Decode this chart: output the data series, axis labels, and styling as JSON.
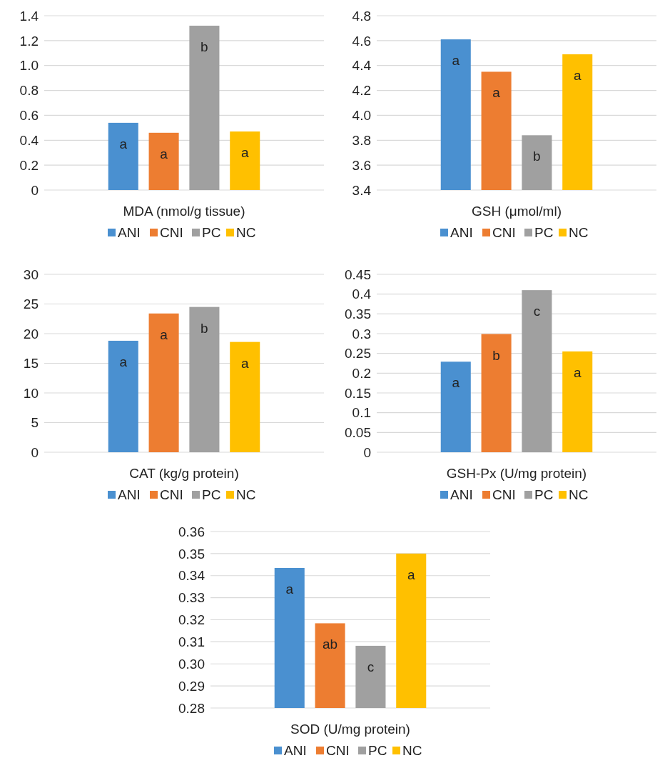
{
  "chart_data": [
    {
      "type": "bar",
      "xlabel": "MDA (nmol/g tissue)",
      "categories": [
        null
      ],
      "ylim": [
        0,
        1.4
      ],
      "yticks": [
        0,
        0.2,
        0.4,
        0.6,
        0.8,
        {
          "value": 1,
          "label": "1.0"
        },
        1.2,
        1.4
      ],
      "grid": "y",
      "legend": "bottom",
      "series": [
        {
          "name": "ANI",
          "color": "#4a90d0",
          "values": [
            0.54
          ],
          "value_labels": [
            "a"
          ]
        },
        {
          "name": "CNI",
          "color": "#ed7d31",
          "values": [
            0.46
          ],
          "value_labels": [
            "a"
          ]
        },
        {
          "name": "PC",
          "color": "#a0a0a0",
          "values": [
            1.32
          ],
          "value_labels": [
            "b"
          ]
        },
        {
          "name": "NC",
          "color": "#ffc000",
          "values": [
            0.47
          ],
          "value_labels": [
            "a"
          ]
        }
      ]
    },
    {
      "type": "bar",
      "xlabel": "GSH (μmol/ml)",
      "categories": [
        null
      ],
      "ylim": [
        3.4,
        4.8
      ],
      "yticks": [
        3.4,
        3.6,
        3.8,
        {
          "value": 4,
          "label": "4.0"
        },
        4.2,
        4.4,
        4.6,
        4.8
      ],
      "grid": "y",
      "legend": "bottom",
      "series": [
        {
          "name": "ANI",
          "color": "#4a90d0",
          "values": [
            4.61
          ],
          "value_labels": [
            "a"
          ]
        },
        {
          "name": "CNI",
          "color": "#ed7d31",
          "values": [
            4.35
          ],
          "value_labels": [
            "a"
          ]
        },
        {
          "name": "PC",
          "color": "#a0a0a0",
          "values": [
            3.84
          ],
          "value_labels": [
            "b"
          ]
        },
        {
          "name": "NC",
          "color": "#ffc000",
          "values": [
            4.49
          ],
          "value_labels": [
            "a"
          ]
        }
      ]
    },
    {
      "type": "bar",
      "xlabel": "CAT (kg/g protein)",
      "categories": [
        null
      ],
      "ylim": [
        0,
        30
      ],
      "yticks": [
        0,
        5,
        10,
        15,
        20,
        25,
        30
      ],
      "grid": "y",
      "legend": "bottom",
      "series": [
        {
          "name": "ANI",
          "color": "#4a90d0",
          "values": [
            18.8
          ],
          "value_labels": [
            "a"
          ]
        },
        {
          "name": "CNI",
          "color": "#ed7d31",
          "values": [
            23.4
          ],
          "value_labels": [
            "a"
          ]
        },
        {
          "name": "PC",
          "color": "#a0a0a0",
          "values": [
            24.5
          ],
          "value_labels": [
            "b"
          ]
        },
        {
          "name": "NC",
          "color": "#ffc000",
          "values": [
            18.6
          ],
          "value_labels": [
            "a"
          ]
        }
      ]
    },
    {
      "type": "bar",
      "xlabel": "GSH-Px (U/mg protein)",
      "categories": [
        null
      ],
      "ylim": [
        0,
        0.45
      ],
      "yticks": [
        0,
        0.05,
        0.1,
        0.15,
        0.2,
        0.25,
        0.3,
        0.35,
        0.4,
        0.45
      ],
      "grid": "y",
      "legend": "bottom",
      "series": [
        {
          "name": "ANI",
          "color": "#4a90d0",
          "values": [
            0.229
          ],
          "value_labels": [
            "a"
          ]
        },
        {
          "name": "CNI",
          "color": "#ed7d31",
          "values": [
            0.299
          ],
          "value_labels": [
            "b"
          ]
        },
        {
          "name": "PC",
          "color": "#a0a0a0",
          "values": [
            0.41
          ],
          "value_labels": [
            "c"
          ]
        },
        {
          "name": "NC",
          "color": "#ffc000",
          "values": [
            0.255
          ],
          "value_labels": [
            "a"
          ]
        }
      ]
    },
    {
      "type": "bar",
      "xlabel": "SOD (U/mg protein)",
      "categories": [
        null
      ],
      "ylim": [
        0.28,
        0.36
      ],
      "yticks": [
        0.28,
        0.29,
        {
          "value": 0.3,
          "label": "0.30"
        },
        0.31,
        0.32,
        0.33,
        0.34,
        0.35,
        0.36
      ],
      "grid": "y",
      "legend": "bottom",
      "series": [
        {
          "name": "ANI",
          "color": "#4a90d0",
          "values": [
            0.3435
          ],
          "value_labels": [
            "a"
          ]
        },
        {
          "name": "CNI",
          "color": "#ed7d31",
          "values": [
            0.3184
          ],
          "value_labels": [
            "ab"
          ]
        },
        {
          "name": "PC",
          "color": "#a0a0a0",
          "values": [
            0.3082
          ],
          "value_labels": [
            "c"
          ]
        },
        {
          "name": "NC",
          "color": "#ffc000",
          "values": [
            0.35
          ],
          "value_labels": [
            "a"
          ]
        }
      ]
    }
  ]
}
